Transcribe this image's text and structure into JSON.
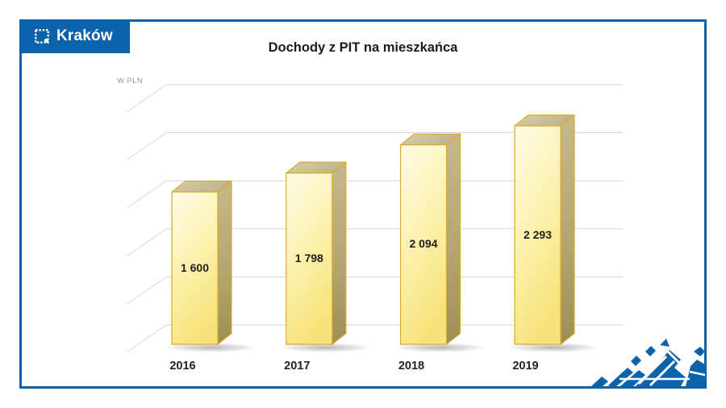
{
  "logo": {
    "text": "Kraków"
  },
  "colors": {
    "brand_blue": "#0B63AC",
    "bar_front_yellow": "#F8E67E",
    "bar_outline_gold": "#DCA92A",
    "gridline_gray": "#D6D6D6"
  },
  "chart_data": {
    "type": "bar",
    "style": "3d-column",
    "title": "Dochody z PIT na mieszkańca",
    "unit_label": "W PLN",
    "categories": [
      "2016",
      "2017",
      "2018",
      "2019"
    ],
    "values": [
      1600,
      1798,
      2094,
      2293
    ],
    "value_labels": [
      "1 600",
      "1 798",
      "2 094",
      "2 293"
    ],
    "xlabel": "",
    "ylabel": "W PLN",
    "ylim": [
      0,
      2700
    ],
    "grid": true,
    "legend": false
  }
}
